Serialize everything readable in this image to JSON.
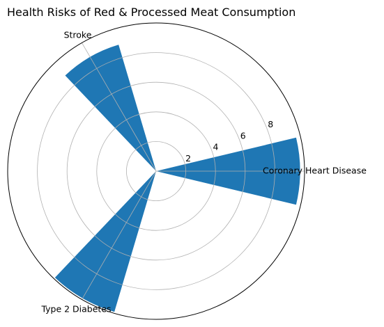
{
  "chart_data": {
    "type": "polar-bar",
    "title": "Health Risks of Red & Processed Meat Consumption",
    "categories": [
      "Coronary Heart Disease",
      "Stroke",
      "Type 2 Diabetes"
    ],
    "values": [
      9.7,
      8.9,
      9.9
    ],
    "angles_deg": [
      0,
      120,
      240
    ],
    "radial_ticks": [
      2,
      4,
      6,
      8
    ],
    "rlim": [
      0,
      10
    ],
    "grid": true,
    "bar_color": "#1f77b4"
  }
}
